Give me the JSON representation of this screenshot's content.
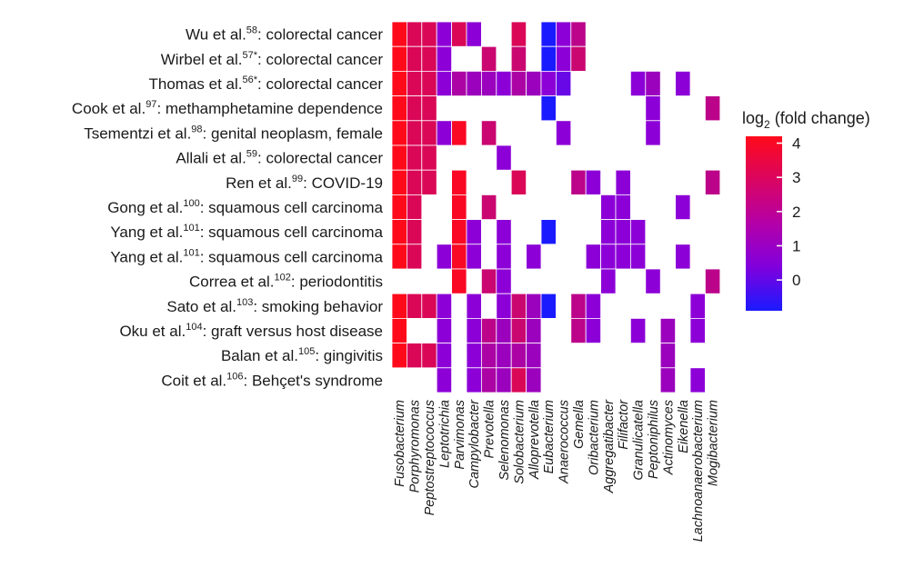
{
  "chart_data": {
    "type": "heatmap",
    "title": "",
    "xlabel": "",
    "ylabel": "",
    "rows": [
      {
        "author": "Wu et al.",
        "ref": "58",
        "condition": "colorectal cancer"
      },
      {
        "author": "Wirbel et al.",
        "ref": "57*",
        "condition": "colorectal cancer"
      },
      {
        "author": "Thomas et al.",
        "ref": "56*",
        "condition": "colorectal cancer"
      },
      {
        "author": "Cook et al.",
        "ref": "97",
        "condition": "methamphetamine dependence"
      },
      {
        "author": "Tsementzi et al.",
        "ref": "98",
        "condition": "genital neoplasm, female"
      },
      {
        "author": "Allali et al.",
        "ref": "59",
        "condition": "colorectal cancer"
      },
      {
        "author": "Ren et al.",
        "ref": "99",
        "condition": "COVID-19"
      },
      {
        "author": "Gong et al.",
        "ref": "100",
        "condition": "squamous cell carcinoma"
      },
      {
        "author": "Yang et al.",
        "ref": "101",
        "condition": "squamous cell carcinoma"
      },
      {
        "author": "Yang et al.",
        "ref": "101",
        "condition": "squamous cell carcinoma"
      },
      {
        "author": "Correa et al.",
        "ref": "102",
        "condition": "periodontitis"
      },
      {
        "author": "Sato et al.",
        "ref": "103",
        "condition": "smoking behavior"
      },
      {
        "author": "Oku et al.",
        "ref": "104",
        "condition": "graft versus host disease"
      },
      {
        "author": "Balan et al.",
        "ref": "105",
        "condition": "gingivitis"
      },
      {
        "author": "Coit et al.",
        "ref": "106",
        "condition": "Behçet's syndrome"
      }
    ],
    "columns": [
      "Fusobacterium",
      "Porphyromonas",
      "Peptostreptococcus",
      "Leptotrichia",
      "Parvimonas",
      "Campylobacter",
      "Prevotella",
      "Selenomonas",
      "Solobacterium",
      "Alloprevotella",
      "Eubacterium",
      "Anaerococcus",
      "Gemella",
      "Oribacterium",
      "Aggregatibacter",
      "Filifactor",
      "Granulicatella",
      "Peptoniphilus",
      "Actinomyces",
      "Eikenella",
      "Lachnoanaerobacterium",
      "Mogibacterium"
    ],
    "values": [
      [
        4.5,
        3.0,
        3.0,
        0.5,
        3.0,
        0.5,
        null,
        null,
        3.0,
        null,
        -1.0,
        0.5,
        2.0,
        null,
        null,
        null,
        null,
        null,
        null,
        null,
        null,
        null
      ],
      [
        4.5,
        3.0,
        3.0,
        0.5,
        null,
        null,
        2.5,
        null,
        2.5,
        null,
        -1.0,
        0.5,
        2.5,
        null,
        null,
        null,
        null,
        null,
        null,
        null,
        null,
        null
      ],
      [
        4.5,
        3.0,
        3.0,
        0.5,
        1.5,
        1.0,
        1.0,
        0.5,
        1.5,
        1.0,
        0.5,
        0.0,
        null,
        null,
        null,
        null,
        0.5,
        1.0,
        null,
        0.5,
        null,
        null
      ],
      [
        4.5,
        3.0,
        3.0,
        null,
        null,
        null,
        null,
        null,
        null,
        null,
        -1.0,
        null,
        null,
        null,
        null,
        null,
        null,
        0.5,
        null,
        null,
        null,
        2.0
      ],
      [
        4.5,
        3.0,
        3.0,
        0.5,
        4.0,
        null,
        2.5,
        null,
        null,
        null,
        null,
        0.5,
        null,
        null,
        null,
        null,
        null,
        0.5,
        null,
        null,
        null,
        null
      ],
      [
        4.5,
        3.0,
        3.0,
        null,
        null,
        null,
        null,
        0.5,
        null,
        null,
        null,
        null,
        null,
        null,
        null,
        null,
        null,
        null,
        null,
        null,
        null,
        null
      ],
      [
        4.5,
        3.0,
        3.0,
        null,
        4.0,
        null,
        null,
        null,
        3.0,
        null,
        null,
        null,
        2.0,
        0.5,
        null,
        0.5,
        null,
        null,
        null,
        null,
        null,
        2.0
      ],
      [
        4.5,
        3.0,
        null,
        null,
        4.0,
        null,
        2.5,
        null,
        null,
        null,
        null,
        null,
        null,
        null,
        0.5,
        0.5,
        null,
        null,
        null,
        0.5,
        null,
        null
      ],
      [
        4.5,
        3.0,
        null,
        null,
        4.0,
        0.5,
        null,
        0.5,
        null,
        null,
        -1.0,
        null,
        null,
        null,
        0.5,
        0.5,
        0.5,
        null,
        null,
        null,
        null,
        null
      ],
      [
        4.5,
        3.0,
        null,
        0.5,
        4.0,
        0.5,
        null,
        0.5,
        null,
        0.5,
        null,
        null,
        null,
        0.5,
        0.5,
        0.5,
        0.5,
        null,
        null,
        0.5,
        null,
        null
      ],
      [
        null,
        null,
        null,
        null,
        4.0,
        null,
        2.5,
        0.5,
        null,
        null,
        null,
        null,
        null,
        null,
        0.5,
        null,
        null,
        0.5,
        null,
        null,
        null,
        2.0
      ],
      [
        4.5,
        3.0,
        3.0,
        0.5,
        null,
        0.5,
        null,
        0.5,
        2.5,
        1.0,
        -1.0,
        null,
        2.0,
        0.5,
        null,
        null,
        null,
        null,
        null,
        null,
        0.5,
        null
      ],
      [
        4.5,
        null,
        null,
        0.5,
        null,
        0.5,
        2.0,
        1.0,
        2.5,
        1.0,
        null,
        null,
        2.0,
        0.5,
        null,
        null,
        0.5,
        null,
        1.0,
        null,
        0.5,
        null
      ],
      [
        4.5,
        3.0,
        3.0,
        0.5,
        null,
        0.5,
        1.5,
        1.0,
        1.5,
        1.0,
        null,
        null,
        null,
        null,
        null,
        null,
        null,
        null,
        1.0,
        null,
        null,
        null
      ],
      [
        null,
        null,
        null,
        0.5,
        null,
        0.5,
        1.5,
        1.0,
        3.0,
        1.0,
        null,
        null,
        null,
        null,
        null,
        null,
        null,
        null,
        1.0,
        null,
        0.5,
        null
      ]
    ],
    "legend": {
      "title": "log",
      "title_sub": "2",
      "title_rest": " (fold change)",
      "ticks": [
        "4",
        "3",
        "2",
        "1",
        "0"
      ],
      "tick_values": [
        4,
        3,
        2,
        1,
        0
      ],
      "range": [
        -0.9,
        4.2
      ],
      "placement": "right"
    },
    "colors": {
      "low": "#1a1aff",
      "mid": "#8800dd",
      "high": "#ff0a1a",
      "grid": "#ffffff"
    }
  }
}
